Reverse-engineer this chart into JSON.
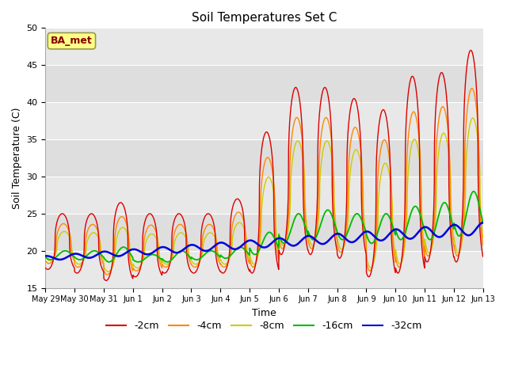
{
  "title": "Soil Temperatures Set C",
  "xlabel": "Time",
  "ylabel": "Soil Temperature (C)",
  "ylim": [
    15,
    50
  ],
  "bg_color": "#ffffff",
  "line_colors": {
    "-2cm": "#dd0000",
    "-4cm": "#ff8800",
    "-8cm": "#cccc00",
    "-16cm": "#00bb00",
    "-32cm": "#0000dd"
  },
  "label_box_color": "#ffff88",
  "label_text_color": "#880000",
  "annotation": "BA_met",
  "tick_labels": [
    "May 29",
    "May 30",
    "May 31",
    "Jun 1",
    "Jun 2",
    "Jun 3",
    "Jun 4",
    "Jun 5",
    "Jun 6",
    "Jun 7",
    "Jun 8",
    "Jun 9",
    "Jun 10",
    "Jun 11",
    "Jun 12",
    "Jun 13"
  ],
  "n_days": 15,
  "points_per_day": 144,
  "band_colors": [
    "#e8e8e8",
    "#dedede"
  ],
  "band_levels": [
    15,
    20,
    25,
    30,
    35,
    40,
    45,
    50
  ]
}
